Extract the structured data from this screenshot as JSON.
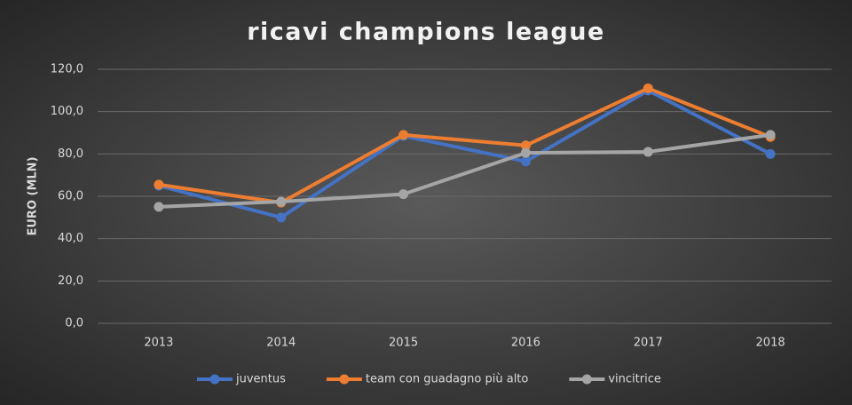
{
  "chart_data": {
    "type": "line",
    "title": "ricavi champions league",
    "y_label": "EURO (MLN)",
    "categories": [
      "2013",
      "2014",
      "2015",
      "2016",
      "2017",
      "2018"
    ],
    "series": [
      {
        "name": "juventus",
        "color": "#4472c4",
        "values": [
          65,
          50,
          88.5,
          76.5,
          110,
          80
        ]
      },
      {
        "name": "team con guadagno più alto",
        "color": "#ed7d31",
        "values": [
          65.5,
          57,
          89,
          84,
          111,
          88
        ]
      },
      {
        "name": "vincitrice",
        "color": "#a5a5a5",
        "values": [
          55,
          57.5,
          61,
          80.5,
          81,
          89
        ]
      }
    ],
    "ylim": [
      0,
      120
    ],
    "yticks": [
      {
        "value": 0,
        "label": "0,0"
      },
      {
        "value": 20,
        "label": "20,0"
      },
      {
        "value": 40,
        "label": "40,0"
      },
      {
        "value": 60,
        "label": "60,0"
      },
      {
        "value": 80,
        "label": "80,0"
      },
      {
        "value": 100,
        "label": "100,0"
      },
      {
        "value": 120,
        "label": "120,0"
      }
    ],
    "grid": true,
    "legend": "bottom"
  }
}
